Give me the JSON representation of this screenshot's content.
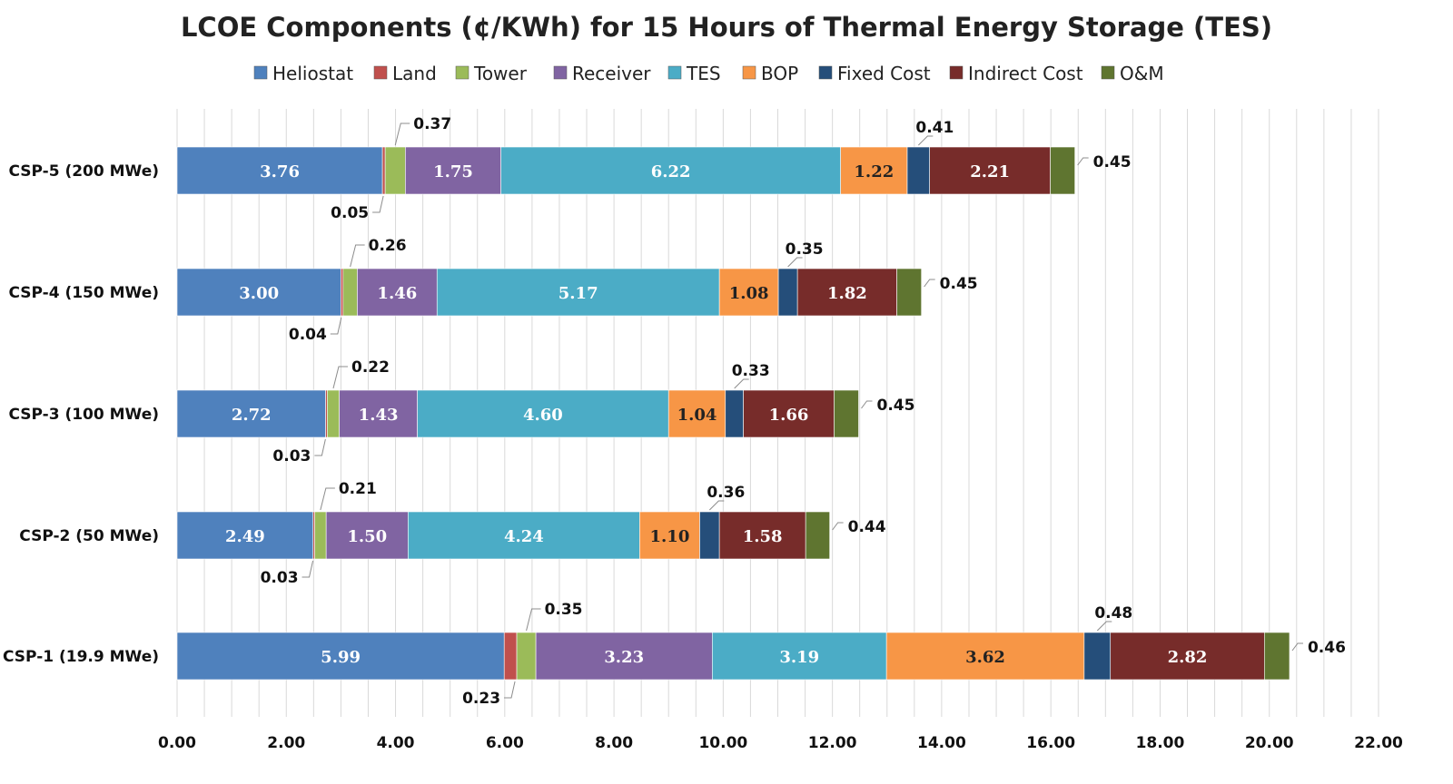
{
  "chart_data": {
    "type": "bar",
    "orientation": "horizontal",
    "stacked": true,
    "title": "LCOE  Components (¢/KWh) for 15 Hours of Thermal Energy Storage (TES)",
    "xlabel": "",
    "ylabel": "",
    "xlim": [
      0,
      22
    ],
    "x_ticks": [
      "0.00",
      "2.00",
      "4.00",
      "6.00",
      "8.00",
      "10.00",
      "12.00",
      "14.00",
      "16.00",
      "18.00",
      "20.00",
      "22.00"
    ],
    "grid": true,
    "legend_position": "top",
    "categories": [
      "CSP-5 (200 MWe)",
      "CSP-4 (150 MWe)",
      "CSP-3 (100 MWe)",
      "CSP-2 (50 MWe)",
      "CSP-1 (19.9 MWe)"
    ],
    "series": [
      {
        "name": "Heliostat",
        "color": "#4f81bd",
        "values": [
          3.76,
          3.0,
          2.72,
          2.49,
          5.99
        ],
        "labels": [
          "3.76",
          "3.00",
          "2.72",
          "2.49",
          "5.99"
        ]
      },
      {
        "name": "Land",
        "color": "#c0504d",
        "values": [
          0.05,
          0.04,
          0.03,
          0.03,
          0.23
        ],
        "labels": [
          "0.05",
          "0.04",
          "0.03",
          "0.03",
          "0.23"
        ]
      },
      {
        "name": "Tower",
        "color": "#9bbb59",
        "values": [
          0.37,
          0.26,
          0.22,
          0.21,
          0.35
        ],
        "labels": [
          "0.37",
          "0.26",
          "0.22",
          "0.21",
          "0.35"
        ]
      },
      {
        "name": "Receiver",
        "color": "#8064a2",
        "values": [
          1.75,
          1.46,
          1.43,
          1.5,
          3.23
        ],
        "labels": [
          "1.75",
          "1.46",
          "1.43",
          "1.50",
          "3.23"
        ]
      },
      {
        "name": "TES",
        "color": "#4bacc6",
        "values": [
          6.22,
          5.17,
          4.6,
          4.24,
          3.19
        ],
        "labels": [
          "6.22",
          "5.17",
          "4.60",
          "4.24",
          "3.19"
        ]
      },
      {
        "name": "BOP",
        "color": "#f79646",
        "values": [
          1.22,
          1.08,
          1.04,
          1.1,
          3.62
        ],
        "labels": [
          "1.22",
          "1.08",
          "1.04",
          "1.10",
          "3.62"
        ]
      },
      {
        "name": "Fixed Cost",
        "color": "#254e7a",
        "values": [
          0.41,
          0.35,
          0.33,
          0.36,
          0.48
        ],
        "labels": [
          "0.41",
          "0.35",
          "0.33",
          "0.36",
          "0.48"
        ]
      },
      {
        "name": "Indirect Cost",
        "color": "#772c2a",
        "values": [
          2.21,
          1.82,
          1.66,
          1.58,
          2.82
        ],
        "labels": [
          "2.21",
          "1.82",
          "1.66",
          "1.58",
          "2.82"
        ]
      },
      {
        "name": "O&M",
        "color": "#5f7530",
        "values": [
          0.45,
          0.45,
          0.45,
          0.44,
          0.46
        ],
        "labels": [
          "0.45",
          "0.45",
          "0.45",
          "0.44",
          "0.46"
        ]
      }
    ]
  }
}
